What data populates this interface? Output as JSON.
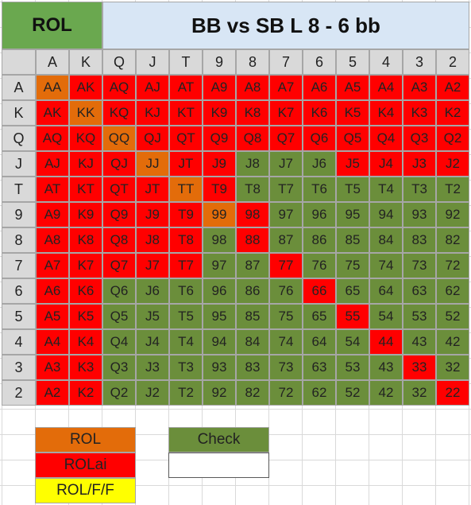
{
  "title": {
    "left": "ROL",
    "right": "BB vs SB L 8 - 6 bb"
  },
  "ranks": [
    "A",
    "K",
    "Q",
    "J",
    "T",
    "9",
    "8",
    "7",
    "6",
    "5",
    "4",
    "3",
    "2"
  ],
  "colors": {
    "ROL": "#e36c0a",
    "ROLai": "#ff0000",
    "ROL/F/F": "#ffff00",
    "Check": "#6b8e3b"
  },
  "grid": [
    [
      "ROL",
      "ROLai",
      "ROLai",
      "ROLai",
      "ROLai",
      "ROLai",
      "ROLai",
      "ROLai",
      "ROLai",
      "ROLai",
      "ROLai",
      "ROLai",
      "ROLai"
    ],
    [
      "ROLai",
      "ROL",
      "ROLai",
      "ROLai",
      "ROLai",
      "ROLai",
      "ROLai",
      "ROLai",
      "ROLai",
      "ROLai",
      "ROLai",
      "ROLai",
      "ROLai"
    ],
    [
      "ROLai",
      "ROLai",
      "ROL",
      "ROLai",
      "ROLai",
      "ROLai",
      "ROLai",
      "ROLai",
      "ROLai",
      "ROLai",
      "ROLai",
      "ROLai",
      "ROLai"
    ],
    [
      "ROLai",
      "ROLai",
      "ROLai",
      "ROL",
      "ROLai",
      "ROLai",
      "Check",
      "Check",
      "Check",
      "ROLai",
      "ROLai",
      "ROLai",
      "ROLai"
    ],
    [
      "ROLai",
      "ROLai",
      "ROLai",
      "ROLai",
      "ROL",
      "ROLai",
      "Check",
      "Check",
      "Check",
      "Check",
      "Check",
      "Check",
      "Check"
    ],
    [
      "ROLai",
      "ROLai",
      "ROLai",
      "ROLai",
      "ROLai",
      "ROL",
      "ROLai",
      "Check",
      "Check",
      "Check",
      "Check",
      "Check",
      "Check"
    ],
    [
      "ROLai",
      "ROLai",
      "ROLai",
      "ROLai",
      "ROLai",
      "Check",
      "ROLai",
      "Check",
      "Check",
      "Check",
      "Check",
      "Check",
      "Check"
    ],
    [
      "ROLai",
      "ROLai",
      "ROLai",
      "ROLai",
      "ROLai",
      "Check",
      "Check",
      "ROLai",
      "Check",
      "Check",
      "Check",
      "Check",
      "Check"
    ],
    [
      "ROLai",
      "ROLai",
      "Check",
      "Check",
      "Check",
      "Check",
      "Check",
      "Check",
      "ROLai",
      "Check",
      "Check",
      "Check",
      "Check"
    ],
    [
      "ROLai",
      "ROLai",
      "Check",
      "Check",
      "Check",
      "Check",
      "Check",
      "Check",
      "Check",
      "ROLai",
      "Check",
      "Check",
      "Check"
    ],
    [
      "ROLai",
      "ROLai",
      "Check",
      "Check",
      "Check",
      "Check",
      "Check",
      "Check",
      "Check",
      "Check",
      "ROLai",
      "Check",
      "Check"
    ],
    [
      "ROLai",
      "ROLai",
      "Check",
      "Check",
      "Check",
      "Check",
      "Check",
      "Check",
      "Check",
      "Check",
      "Check",
      "ROLai",
      "Check"
    ],
    [
      "ROLai",
      "ROLai",
      "Check",
      "Check",
      "Check",
      "Check",
      "Check",
      "Check",
      "Check",
      "Check",
      "Check",
      "Check",
      "ROLai"
    ]
  ],
  "legend": [
    {
      "label": "ROL",
      "action": "ROL"
    },
    {
      "label": "ROLai",
      "action": "ROLai"
    },
    {
      "label": "ROL/F/F",
      "action": "ROL/F/F"
    },
    {
      "label": "Check",
      "action": "Check"
    },
    {
      "label": "",
      "action": "none"
    }
  ]
}
